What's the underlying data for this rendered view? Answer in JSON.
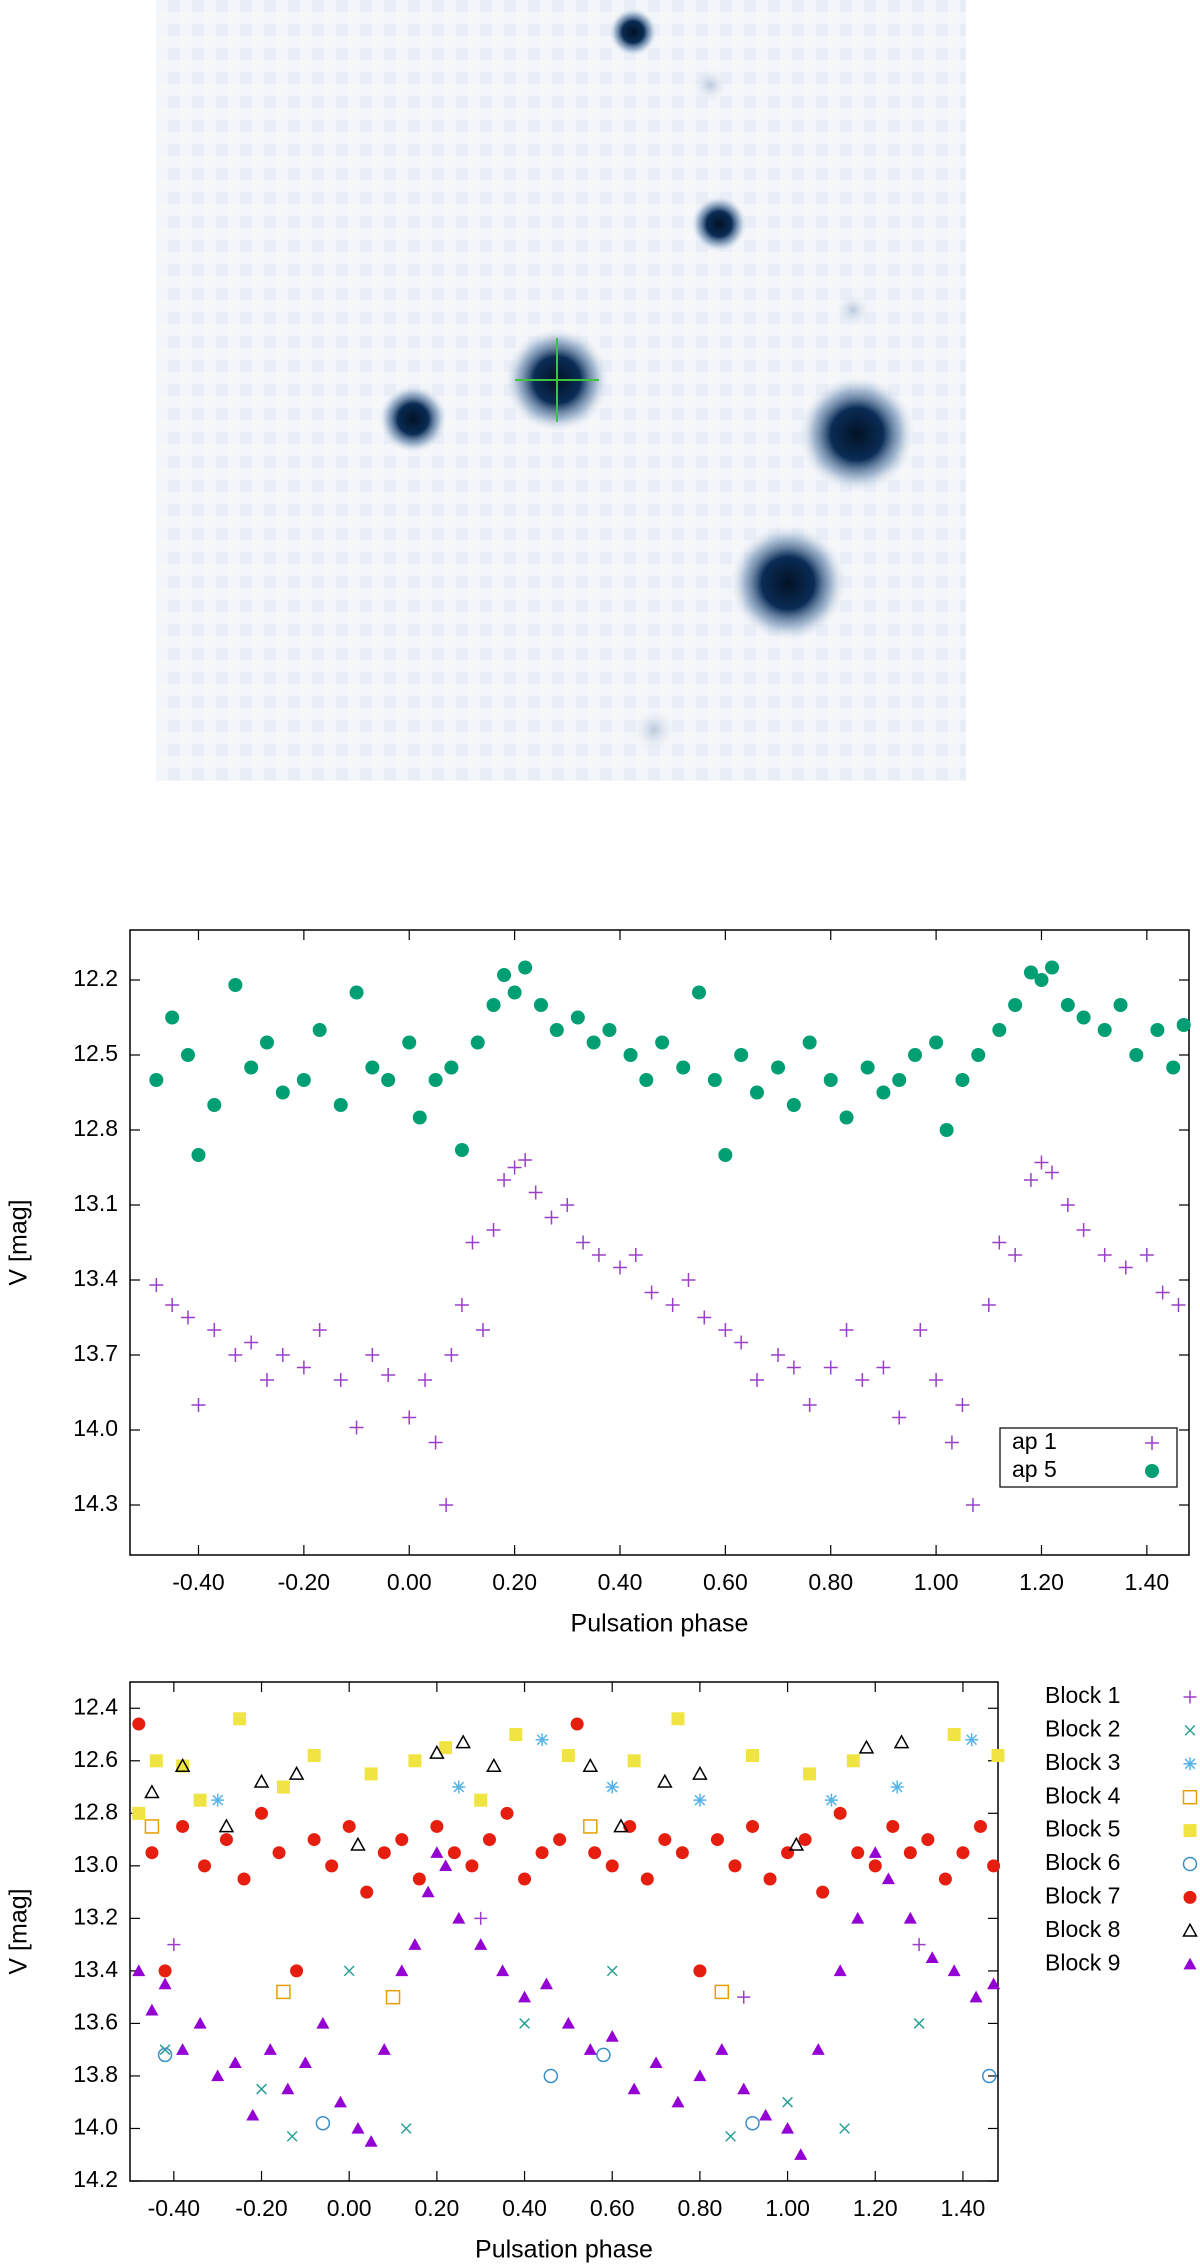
{
  "chart_data": [
    {
      "type": "scatter",
      "xlabel": "Pulsation phase",
      "ylabel": "V [mag]",
      "xlim": [
        -0.53,
        1.48
      ],
      "ylim": [
        14.5,
        12.0
      ],
      "legend": "lower right",
      "xticks": [
        {
          "value": -0.4,
          "label": "-0.40"
        },
        {
          "value": -0.2,
          "label": "-0.20"
        },
        {
          "value": 0,
          "label": "0.00"
        },
        {
          "value": 0.2,
          "label": "0.20"
        },
        {
          "value": 0.4,
          "label": "0.40"
        },
        {
          "value": 0.6,
          "label": "0.60"
        },
        {
          "value": 0.8,
          "label": "0.80"
        },
        {
          "value": 1,
          "label": "1.00"
        },
        {
          "value": 1.2,
          "label": "1.20"
        },
        {
          "value": 1.4,
          "label": "1.40"
        }
      ],
      "yticks": [
        12.2,
        12.5,
        12.8,
        13.1,
        13.4,
        13.7,
        {
          "value": 14,
          "label": "14.0"
        },
        14.3
      ],
      "series": [
        {
          "name": "ap 1",
          "color": "#9c3fc8",
          "marker": "plus",
          "x": [
            -0.48,
            -0.45,
            -0.42,
            -0.4,
            -0.37,
            -0.33,
            -0.3,
            -0.27,
            -0.24,
            -0.2,
            -0.17,
            -0.13,
            -0.1,
            -0.07,
            -0.04,
            0.0,
            0.03,
            0.05,
            0.07,
            0.08,
            0.1,
            0.12,
            0.14,
            0.16,
            0.18,
            0.2,
            0.22,
            0.24,
            0.27,
            0.3,
            0.33,
            0.36,
            0.4,
            0.43,
            0.46,
            0.5,
            0.53,
            0.56,
            0.6,
            0.63,
            0.66,
            0.7,
            0.73,
            0.76,
            0.8,
            0.83,
            0.86,
            0.9,
            0.93,
            0.97,
            1.0,
            1.03,
            1.05,
            1.07,
            1.1,
            1.12,
            1.15,
            1.18,
            1.2,
            1.22,
            1.25,
            1.28,
            1.32,
            1.36,
            1.4,
            1.43,
            1.46
          ],
          "values": [
            13.42,
            13.5,
            13.55,
            13.9,
            13.6,
            13.7,
            13.65,
            13.8,
            13.7,
            13.75,
            13.6,
            13.8,
            13.99,
            13.7,
            13.78,
            13.95,
            13.8,
            14.05,
            14.3,
            13.7,
            13.5,
            13.25,
            13.6,
            13.2,
            13.0,
            12.95,
            12.92,
            13.05,
            13.15,
            13.1,
            13.25,
            13.3,
            13.35,
            13.3,
            13.45,
            13.5,
            13.4,
            13.55,
            13.6,
            13.65,
            13.8,
            13.7,
            13.75,
            13.9,
            13.75,
            13.6,
            13.8,
            13.75,
            13.95,
            13.6,
            13.8,
            14.05,
            13.9,
            14.3,
            13.5,
            13.25,
            13.3,
            13.0,
            12.93,
            12.97,
            13.1,
            13.2,
            13.3,
            13.35,
            13.3,
            13.45,
            13.5
          ]
        },
        {
          "name": "ap 5",
          "color": "#009e73",
          "marker": "circle",
          "x": [
            -0.48,
            -0.45,
            -0.42,
            -0.4,
            -0.37,
            -0.33,
            -0.3,
            -0.27,
            -0.24,
            -0.2,
            -0.17,
            -0.13,
            -0.1,
            -0.07,
            -0.04,
            0.0,
            0.02,
            0.05,
            0.08,
            0.1,
            0.13,
            0.16,
            0.18,
            0.2,
            0.22,
            0.25,
            0.28,
            0.32,
            0.35,
            0.38,
            0.42,
            0.45,
            0.48,
            0.52,
            0.55,
            0.58,
            0.6,
            0.63,
            0.66,
            0.7,
            0.73,
            0.76,
            0.8,
            0.83,
            0.87,
            0.9,
            0.93,
            0.96,
            1.0,
            1.02,
            1.05,
            1.08,
            1.12,
            1.15,
            1.18,
            1.2,
            1.22,
            1.25,
            1.28,
            1.32,
            1.35,
            1.38,
            1.42,
            1.45,
            1.47
          ],
          "values": [
            12.6,
            12.35,
            12.5,
            12.9,
            12.7,
            12.22,
            12.55,
            12.45,
            12.65,
            12.6,
            12.4,
            12.7,
            12.25,
            12.55,
            12.6,
            12.45,
            12.75,
            12.6,
            12.55,
            12.88,
            12.45,
            12.3,
            12.18,
            12.25,
            12.15,
            12.3,
            12.4,
            12.35,
            12.45,
            12.4,
            12.5,
            12.6,
            12.45,
            12.55,
            12.25,
            12.6,
            12.9,
            12.5,
            12.65,
            12.55,
            12.7,
            12.45,
            12.6,
            12.75,
            12.55,
            12.65,
            12.6,
            12.5,
            12.45,
            12.8,
            12.6,
            12.5,
            12.4,
            12.3,
            12.17,
            12.2,
            12.15,
            12.3,
            12.35,
            12.4,
            12.3,
            12.5,
            12.4,
            12.55,
            12.38
          ]
        }
      ]
    },
    {
      "type": "scatter",
      "xlabel": "Pulsation phase",
      "ylabel": "V [mag]",
      "xlim": [
        -0.5,
        1.48
      ],
      "ylim": [
        14.2,
        12.3
      ],
      "legend": "outside right",
      "xticks": [
        {
          "value": -0.4,
          "label": "-0.40"
        },
        {
          "value": -0.2,
          "label": "-0.20"
        },
        {
          "value": 0,
          "label": "0.00"
        },
        {
          "value": 0.2,
          "label": "0.20"
        },
        {
          "value": 0.4,
          "label": "0.40"
        },
        {
          "value": 0.6,
          "label": "0.60"
        },
        {
          "value": 0.8,
          "label": "0.80"
        },
        {
          "value": 1,
          "label": "1.00"
        },
        {
          "value": 1.2,
          "label": "1.20"
        },
        {
          "value": 1.4,
          "label": "1.40"
        }
      ],
      "yticks": [
        12.4,
        12.6,
        12.8,
        {
          "value": 13,
          "label": "13.0"
        },
        13.2,
        13.4,
        13.6,
        13.8,
        {
          "value": 14,
          "label": "14.0"
        },
        14.2
      ],
      "series": [
        {
          "name": "Block 1",
          "color": "#9c3fc8",
          "marker": "plus",
          "x": [
            -0.4,
            0.3,
            0.9,
            1.3
          ],
          "values": [
            13.3,
            13.2,
            13.5,
            13.3
          ]
        },
        {
          "name": "Block 2",
          "color": "#2aa198",
          "marker": "x",
          "x": [
            -0.42,
            -0.2,
            0.0,
            0.13,
            -0.13,
            0.4,
            0.87,
            1.0,
            1.13,
            1.3,
            0.6
          ],
          "values": [
            13.7,
            13.85,
            13.4,
            14.0,
            14.03,
            13.6,
            14.03,
            13.9,
            14.0,
            13.6,
            13.4
          ]
        },
        {
          "name": "Block 3",
          "color": "#56b4e9",
          "marker": "star",
          "x": [
            -0.3,
            0.25,
            0.44,
            0.6,
            0.8,
            1.25,
            1.42,
            1.1
          ],
          "values": [
            12.75,
            12.7,
            12.52,
            12.7,
            12.75,
            12.7,
            12.52,
            12.75
          ]
        },
        {
          "name": "Block 4",
          "color": "#e69f00",
          "marker": "square-open",
          "x": [
            -0.45,
            -0.15,
            0.1,
            0.85,
            0.55
          ],
          "values": [
            12.85,
            13.48,
            13.5,
            13.48,
            12.85
          ]
        },
        {
          "name": "Block 5",
          "color": "#f0e442",
          "marker": "square",
          "x": [
            -0.48,
            -0.44,
            -0.38,
            -0.34,
            -0.25,
            -0.15,
            -0.08,
            0.05,
            0.15,
            0.22,
            0.38,
            0.5,
            0.65,
            0.75,
            0.92,
            1.05,
            1.15,
            1.38,
            1.48,
            0.3
          ],
          "values": [
            12.8,
            12.6,
            12.62,
            12.75,
            12.44,
            12.7,
            12.58,
            12.65,
            12.6,
            12.55,
            12.5,
            12.58,
            12.6,
            12.44,
            12.58,
            12.65,
            12.6,
            12.5,
            12.58,
            12.75
          ]
        },
        {
          "name": "Block 6",
          "color": "#3a8fc8",
          "marker": "circle-open",
          "x": [
            -0.42,
            -0.06,
            0.46,
            0.58,
            0.92,
            1.46
          ],
          "values": [
            13.72,
            13.98,
            13.8,
            13.72,
            13.98,
            13.8
          ]
        },
        {
          "name": "Block 7",
          "color": "#e51e10",
          "marker": "circle",
          "x": [
            -0.48,
            -0.45,
            -0.42,
            -0.38,
            -0.33,
            -0.28,
            -0.24,
            -0.2,
            -0.16,
            -0.12,
            -0.08,
            -0.04,
            0.0,
            0.04,
            0.08,
            0.12,
            0.16,
            0.2,
            0.24,
            0.28,
            0.32,
            0.36,
            0.4,
            0.44,
            0.48,
            0.52,
            0.56,
            0.6,
            0.64,
            0.68,
            0.72,
            0.76,
            0.8,
            0.84,
            0.88,
            0.92,
            0.96,
            1.0,
            1.04,
            1.08,
            1.12,
            1.16,
            1.2,
            1.24,
            1.28,
            1.32,
            1.36,
            1.4,
            1.44,
            1.47
          ],
          "values": [
            12.46,
            12.95,
            13.4,
            12.85,
            13.0,
            12.9,
            13.05,
            12.8,
            12.95,
            13.4,
            12.9,
            13.0,
            12.85,
            13.1,
            12.95,
            12.9,
            13.05,
            12.85,
            12.95,
            13.0,
            12.9,
            12.8,
            13.05,
            12.95,
            12.9,
            12.46,
            12.95,
            13.0,
            12.85,
            13.05,
            12.9,
            12.95,
            13.4,
            12.9,
            13.0,
            12.85,
            13.05,
            12.95,
            12.9,
            13.1,
            12.8,
            12.95,
            13.0,
            12.85,
            12.95,
            12.9,
            13.05,
            12.95,
            12.85,
            13.0
          ]
        },
        {
          "name": "Block 8",
          "color": "#000000",
          "marker": "triangle-open",
          "x": [
            -0.45,
            -0.38,
            -0.28,
            -0.2,
            -0.12,
            0.02,
            0.2,
            0.26,
            0.33,
            0.55,
            0.62,
            0.72,
            0.8,
            1.02,
            1.18,
            1.26
          ],
          "values": [
            12.72,
            12.62,
            12.85,
            12.68,
            12.65,
            12.92,
            12.57,
            12.53,
            12.62,
            12.62,
            12.85,
            12.68,
            12.65,
            12.92,
            12.55,
            12.53
          ]
        },
        {
          "name": "Block 9",
          "color": "#9400d3",
          "marker": "triangle",
          "x": [
            -0.48,
            -0.45,
            -0.42,
            -0.38,
            -0.34,
            -0.3,
            -0.26,
            -0.22,
            -0.18,
            -0.14,
            -0.1,
            -0.06,
            -0.02,
            0.02,
            0.05,
            0.08,
            0.12,
            0.15,
            0.18,
            0.2,
            0.22,
            0.25,
            0.3,
            0.35,
            0.4,
            0.45,
            0.5,
            0.55,
            0.6,
            0.65,
            0.7,
            0.75,
            0.8,
            0.85,
            0.9,
            0.95,
            1.0,
            1.03,
            1.07,
            1.12,
            1.16,
            1.2,
            1.23,
            1.28,
            1.33,
            1.38,
            1.43,
            1.47
          ],
          "values": [
            13.4,
            13.55,
            13.45,
            13.7,
            13.6,
            13.8,
            13.75,
            13.95,
            13.7,
            13.85,
            13.75,
            13.6,
            13.9,
            14.0,
            14.05,
            13.7,
            13.4,
            13.3,
            13.1,
            12.95,
            13.0,
            13.2,
            13.3,
            13.4,
            13.5,
            13.45,
            13.6,
            13.7,
            13.65,
            13.85,
            13.75,
            13.9,
            13.8,
            13.7,
            13.85,
            13.95,
            14.0,
            14.1,
            13.7,
            13.4,
            13.2,
            12.95,
            13.05,
            13.2,
            13.35,
            13.4,
            13.5,
            13.45
          ]
        }
      ]
    }
  ]
}
